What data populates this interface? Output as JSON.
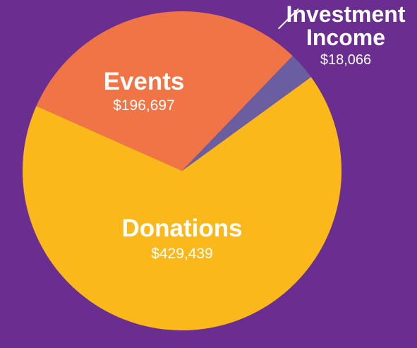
{
  "chart_data": {
    "type": "pie",
    "title": "",
    "slices": [
      {
        "label": "Donations",
        "value_text": "$429,439",
        "value": 429439,
        "color": "#fbb81b"
      },
      {
        "label": "Events",
        "value_text": "$196,697",
        "value": 196697,
        "color": "#f07446"
      },
      {
        "label": "Investment Income",
        "value_text": "$18,066",
        "value": 18066,
        "color": "#6b5ea0"
      }
    ],
    "investment_label_lines": [
      "Investment",
      "Income"
    ],
    "background_color": "#6a2d90",
    "legend": "none",
    "slice_labels": "on-slice"
  }
}
